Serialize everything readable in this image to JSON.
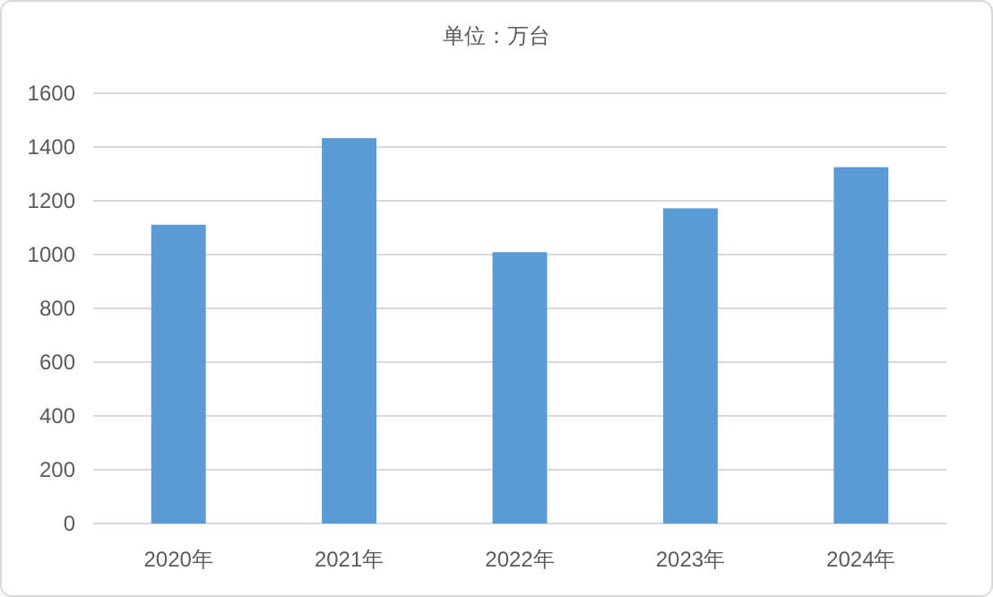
{
  "chart_data": {
    "type": "bar",
    "title": "单位：万台",
    "categories": [
      "2020年",
      "2021年",
      "2022年",
      "2023年",
      "2024年"
    ],
    "values": [
      1111,
      1433,
      1009,
      1172,
      1325
    ],
    "color": "#5b9bd5",
    "ylim": [
      0,
      1600
    ],
    "yticks": [
      0,
      200,
      400,
      600,
      800,
      1000,
      1200,
      1400,
      1600
    ],
    "grid": "y"
  }
}
